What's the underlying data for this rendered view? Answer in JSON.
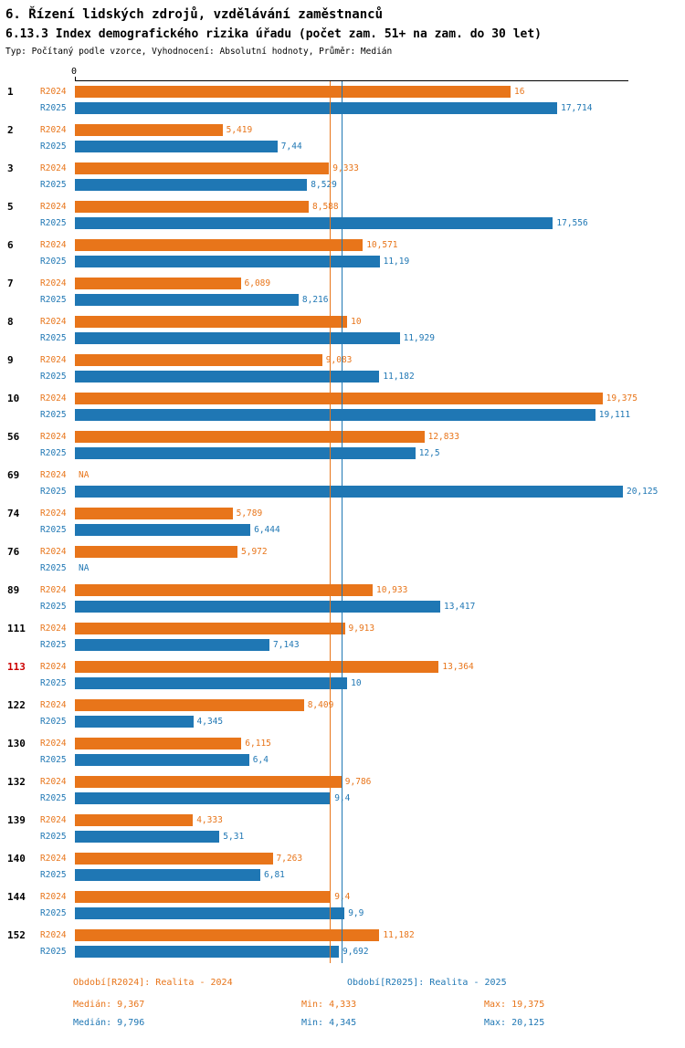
{
  "title": "6. Řízení lidských zdrojů, vzdělávání zaměstnanců",
  "subtitle": "6.13.3 Index demografického rizika úřadu (počet zam. 51+ na zam. do 30 let)",
  "meta": "Typ: Počítaný podle vzorce, Vyhodnocení: Absolutní hodnoty, Průměr: Medián",
  "colors": {
    "r2024": "#E8751A",
    "r2025": "#1F77B4",
    "highlight": "#CC0000"
  },
  "axis": {
    "zero_label": "0"
  },
  "chart_data": {
    "type": "bar",
    "orientation": "horizontal",
    "axis_max": 20.125,
    "series_labels": [
      "R2024",
      "R2025"
    ],
    "medians": {
      "r2024": 9.367,
      "r2025": 9.796
    },
    "rows": [
      {
        "id": "1",
        "r2024": 16,
        "r2024_label": "16",
        "r2025": 17.714,
        "r2025_label": "17,714"
      },
      {
        "id": "2",
        "r2024": 5.419,
        "r2024_label": "5,419",
        "r2025": 7.44,
        "r2025_label": "7,44"
      },
      {
        "id": "3",
        "r2024": 9.333,
        "r2024_label": "9,333",
        "r2025": 8.529,
        "r2025_label": "8,529"
      },
      {
        "id": "5",
        "r2024": 8.588,
        "r2024_label": "8,588",
        "r2025": 17.556,
        "r2025_label": "17,556"
      },
      {
        "id": "6",
        "r2024": 10.571,
        "r2024_label": "10,571",
        "r2025": 11.19,
        "r2025_label": "11,19"
      },
      {
        "id": "7",
        "r2024": 6.089,
        "r2024_label": "6,089",
        "r2025": 8.216,
        "r2025_label": "8,216"
      },
      {
        "id": "8",
        "r2024": 10,
        "r2024_label": "10",
        "r2025": 11.929,
        "r2025_label": "11,929"
      },
      {
        "id": "9",
        "r2024": 9.083,
        "r2024_label": "9,083",
        "r2025": 11.182,
        "r2025_label": "11,182"
      },
      {
        "id": "10",
        "r2024": 19.375,
        "r2024_label": "19,375",
        "r2025": 19.111,
        "r2025_label": "19,111"
      },
      {
        "id": "56",
        "r2024": 12.833,
        "r2024_label": "12,833",
        "r2025": 12.5,
        "r2025_label": "12,5"
      },
      {
        "id": "69",
        "r2024": null,
        "r2024_label": "NA",
        "r2025": 20.125,
        "r2025_label": "20,125"
      },
      {
        "id": "74",
        "r2024": 5.789,
        "r2024_label": "5,789",
        "r2025": 6.444,
        "r2025_label": "6,444"
      },
      {
        "id": "76",
        "r2024": 5.972,
        "r2024_label": "5,972",
        "r2025": null,
        "r2025_label": "NA"
      },
      {
        "id": "89",
        "r2024": 10.933,
        "r2024_label": "10,933",
        "r2025": 13.417,
        "r2025_label": "13,417"
      },
      {
        "id": "111",
        "r2024": 9.913,
        "r2024_label": "9,913",
        "r2025": 7.143,
        "r2025_label": "7,143"
      },
      {
        "id": "113",
        "highlight": true,
        "r2024": 13.364,
        "r2024_label": "13,364",
        "r2025": 10,
        "r2025_label": "10"
      },
      {
        "id": "122",
        "r2024": 8.409,
        "r2024_label": "8,409",
        "r2025": 4.345,
        "r2025_label": "4,345"
      },
      {
        "id": "130",
        "r2024": 6.115,
        "r2024_label": "6,115",
        "r2025": 6.4,
        "r2025_label": "6,4"
      },
      {
        "id": "132",
        "r2024": 9.786,
        "r2024_label": "9,786",
        "r2025": 9.4,
        "r2025_label": "9,4"
      },
      {
        "id": "139",
        "r2024": 4.333,
        "r2024_label": "4,333",
        "r2025": 5.31,
        "r2025_label": "5,31"
      },
      {
        "id": "140",
        "r2024": 7.263,
        "r2024_label": "7,263",
        "r2025": 6.81,
        "r2025_label": "6,81"
      },
      {
        "id": "144",
        "r2024": 9.4,
        "r2024_label": "9,4",
        "r2025": 9.9,
        "r2025_label": "9,9"
      },
      {
        "id": "152",
        "r2024": 11.182,
        "r2024_label": "11,182",
        "r2025": 9.692,
        "r2025_label": "9,692"
      }
    ]
  },
  "legend": {
    "r2024": "Období[R2024]: Realita - 2024",
    "r2025": "Období[R2025]: Realita - 2025"
  },
  "stats": {
    "r2024": {
      "median": "Medián: 9,367",
      "min": "Min: 4,333",
      "max": "Max: 19,375"
    },
    "r2025": {
      "median": "Medián: 9,796",
      "min": "Min: 4,345",
      "max": "Max: 20,125"
    }
  }
}
